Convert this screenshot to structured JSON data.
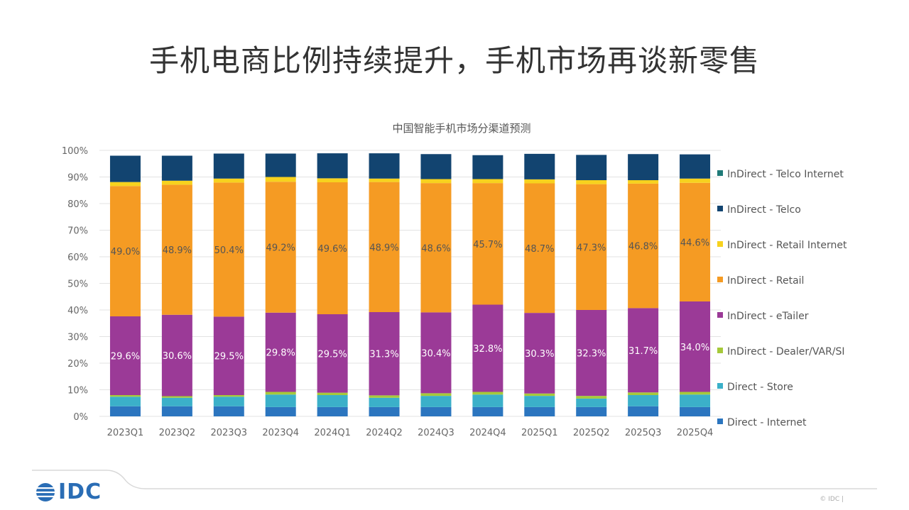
{
  "page": {
    "title": "手机电商比例持续提升，手机市场再谈新零售",
    "logo_text": "IDC",
    "copyright": "© IDC |"
  },
  "colors": {
    "direct_internet": "#2b75bf",
    "direct_store": "#3bb0c9",
    "dealer": "#a6c93a",
    "etailer": "#9b3a97",
    "retail": "#f59b23",
    "retail_internet": "#f7d21e",
    "telco": "#124470",
    "telco_internet": "#1f7a78"
  },
  "chart_data": {
    "type": "bar",
    "stacked": true,
    "title": "中国智能手机市场分渠道预测",
    "categories": [
      "2023Q1",
      "2023Q2",
      "2023Q3",
      "2023Q4",
      "2024Q1",
      "2024Q2",
      "2024Q3",
      "2024Q4",
      "2025Q1",
      "2025Q2",
      "2025Q3",
      "2025Q4"
    ],
    "y_ticks": [
      "0%",
      "10%",
      "20%",
      "30%",
      "40%",
      "50%",
      "60%",
      "70%",
      "80%",
      "90%",
      "100%"
    ],
    "ylim": [
      0,
      100
    ],
    "grid": true,
    "legend_position": "right",
    "series": [
      {
        "name": "Direct - Internet",
        "color_key": "direct_internet",
        "values": [
          3.8,
          3.8,
          3.8,
          3.5,
          3.5,
          3.5,
          3.5,
          3.5,
          3.5,
          3.5,
          3.8,
          3.5
        ]
      },
      {
        "name": "Direct - Store",
        "color_key": "direct_store",
        "values": [
          3.6,
          3.2,
          3.6,
          4.7,
          4.5,
          3.5,
          4.2,
          4.7,
          4.2,
          3.2,
          4.2,
          4.7
        ]
      },
      {
        "name": "InDirect - Dealer/VAR/SI",
        "color_key": "dealer",
        "values": [
          0.6,
          0.6,
          0.6,
          1.0,
          0.9,
          0.9,
          1.0,
          1.0,
          0.9,
          1.0,
          1.0,
          1.0
        ]
      },
      {
        "name": "InDirect - eTailer",
        "color_key": "etailer",
        "values": [
          29.6,
          30.6,
          29.5,
          29.8,
          29.5,
          31.3,
          30.4,
          32.8,
          30.3,
          32.3,
          31.7,
          34.0
        ],
        "labels": [
          "29.6%",
          "30.6%",
          "29.5%",
          "29.8%",
          "29.5%",
          "31.3%",
          "30.4%",
          "32.8%",
          "30.3%",
          "32.3%",
          "31.7%",
          "34.0%"
        ]
      },
      {
        "name": "InDirect - Retail",
        "color_key": "retail",
        "values": [
          49.0,
          48.9,
          50.4,
          49.2,
          49.6,
          48.9,
          48.6,
          45.7,
          48.7,
          47.3,
          46.8,
          44.6
        ],
        "labels": [
          "49.0%",
          "48.9%",
          "50.4%",
          "49.2%",
          "49.6%",
          "48.9%",
          "48.6%",
          "45.7%",
          "48.7%",
          "47.3%",
          "46.8%",
          "44.6%"
        ]
      },
      {
        "name": "InDirect - Retail Internet",
        "color_key": "retail_internet",
        "values": [
          1.5,
          1.5,
          1.5,
          1.8,
          1.5,
          1.3,
          1.5,
          1.5,
          1.5,
          1.5,
          1.3,
          1.6
        ]
      },
      {
        "name": "InDirect - Telco",
        "color_key": "telco",
        "values": [
          9.9,
          9.4,
          9.4,
          8.8,
          9.4,
          9.5,
          9.4,
          9.0,
          9.6,
          9.5,
          9.8,
          9.1
        ]
      },
      {
        "name": "InDirect - Telco Internet",
        "color_key": "telco_internet",
        "values": [
          0,
          0,
          0,
          0,
          0,
          0,
          0,
          0,
          0,
          0,
          0,
          0
        ]
      }
    ],
    "legend_order": [
      "InDirect - Telco Internet",
      "InDirect - Telco",
      "InDirect - Retail Internet",
      "InDirect - Retail",
      "InDirect - eTailer",
      "InDirect - Dealer/VAR/SI",
      "Direct - Store",
      "Direct - Internet"
    ]
  }
}
